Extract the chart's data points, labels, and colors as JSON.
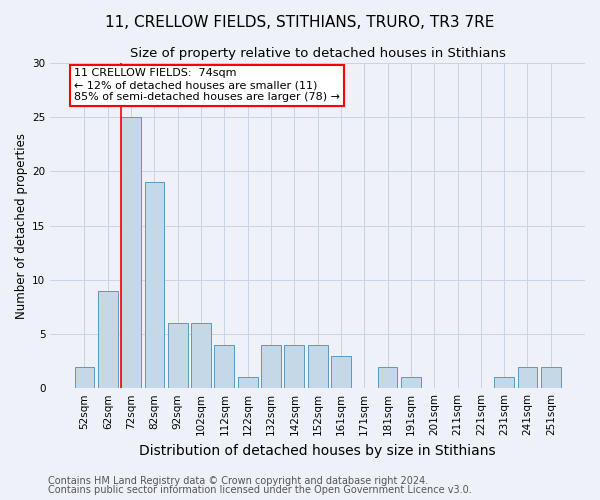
{
  "title": "11, CRELLOW FIELDS, STITHIANS, TRURO, TR3 7RE",
  "subtitle": "Size of property relative to detached houses in Stithians",
  "xlabel": "Distribution of detached houses by size in Stithians",
  "ylabel": "Number of detached properties",
  "footnote1": "Contains HM Land Registry data © Crown copyright and database right 2024.",
  "footnote2": "Contains public sector information licensed under the Open Government Licence v3.0.",
  "categories": [
    "52sqm",
    "62sqm",
    "72sqm",
    "82sqm",
    "92sqm",
    "102sqm",
    "112sqm",
    "122sqm",
    "132sqm",
    "142sqm",
    "152sqm",
    "161sqm",
    "171sqm",
    "181sqm",
    "191sqm",
    "201sqm",
    "211sqm",
    "221sqm",
    "231sqm",
    "241sqm",
    "251sqm"
  ],
  "values": [
    2,
    9,
    25,
    19,
    6,
    6,
    4,
    1,
    4,
    4,
    4,
    3,
    0,
    2,
    1,
    0,
    0,
    0,
    1,
    2,
    2
  ],
  "bar_color": "#c5d8e8",
  "bar_edge_color": "#5a9abf",
  "annotation_text1": "11 CRELLOW FIELDS:  74sqm",
  "annotation_text2": "← 12% of detached houses are smaller (11)",
  "annotation_text3": "85% of semi-detached houses are larger (78) →",
  "annotation_box_color": "white",
  "annotation_box_edge_color": "red",
  "vline_color": "red",
  "vline_index": 2,
  "ylim": [
    0,
    30
  ],
  "yticks": [
    0,
    5,
    10,
    15,
    20,
    25,
    30
  ],
  "grid_color": "#c8d4e4",
  "bg_color": "#eef2f8",
  "title_fontsize": 11,
  "subtitle_fontsize": 9.5,
  "xlabel_fontsize": 10,
  "ylabel_fontsize": 8.5,
  "tick_fontsize": 7.5,
  "annotation_fontsize": 8,
  "footnote_fontsize": 7
}
